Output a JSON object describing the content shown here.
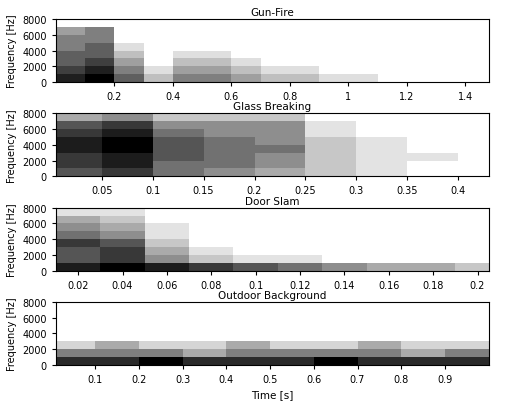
{
  "chart_data": [
    {
      "type": "heatmap",
      "title": "Gun-Fire",
      "ylabel": "Frequency [Hz]",
      "xlim": [
        0.0,
        1.48
      ],
      "xticks": [
        0.2,
        0.4,
        0.6,
        0.8,
        1,
        1.2,
        1.4
      ],
      "ylim": [
        0,
        8000
      ],
      "yticks": [
        0,
        2000,
        4000,
        6000,
        8000
      ],
      "time_bins": [
        0.0,
        0.1,
        0.2,
        0.3,
        0.4,
        0.5,
        0.6,
        0.7,
        0.8,
        0.9,
        1.0,
        1.1,
        1.2,
        1.3,
        1.4,
        1.5
      ],
      "freq_bins": [
        0,
        1000,
        2000,
        3000,
        4000,
        5000,
        6000,
        7000,
        8000
      ],
      "cells": [
        [
          7,
          8,
          5,
          2,
          4,
          4,
          3,
          2,
          2,
          1,
          1,
          0,
          0,
          0,
          0
        ],
        [
          6,
          7,
          4,
          1,
          3,
          3,
          2,
          1,
          1,
          0,
          0,
          0,
          0,
          0,
          0
        ],
        [
          5,
          6,
          3,
          0,
          2,
          2,
          1,
          0,
          0,
          0,
          0,
          0,
          0,
          0,
          0
        ],
        [
          5,
          5,
          2,
          0,
          1,
          1,
          0,
          0,
          0,
          0,
          0,
          0,
          0,
          0,
          0
        ],
        [
          4,
          5,
          1,
          0,
          0,
          0,
          0,
          0,
          0,
          0,
          0,
          0,
          0,
          0,
          0
        ],
        [
          4,
          4,
          0,
          0,
          0,
          0,
          0,
          0,
          0,
          0,
          0,
          0,
          0,
          0,
          0
        ],
        [
          3,
          4,
          0,
          0,
          0,
          0,
          0,
          0,
          0,
          0,
          0,
          0,
          0,
          0,
          0
        ],
        [
          0,
          0,
          0,
          0,
          0,
          0,
          0,
          0,
          0,
          0,
          0,
          0,
          0,
          0,
          0
        ]
      ]
    },
    {
      "type": "heatmap",
      "title": "Glass Breaking",
      "ylabel": "Frequency [Hz]",
      "xlim": [
        0.005,
        0.43
      ],
      "xticks": [
        0.05,
        0.1,
        0.15,
        0.2,
        0.25,
        0.3,
        0.35,
        0.4
      ],
      "ylim": [
        0,
        8000
      ],
      "yticks": [
        0,
        2000,
        4000,
        6000,
        8000
      ],
      "time_bins": [
        0.0,
        0.05,
        0.1,
        0.15,
        0.2,
        0.25,
        0.3,
        0.35,
        0.4,
        0.45
      ],
      "freq_bins": [
        0,
        1000,
        2000,
        3000,
        4000,
        5000,
        6000,
        7000,
        8000
      ],
      "cells": [
        [
          6,
          7,
          5,
          4,
          3,
          2,
          1,
          0,
          0
        ],
        [
          7,
          8,
          5,
          5,
          4,
          2,
          1,
          0,
          0
        ],
        [
          7,
          8,
          6,
          5,
          4,
          2,
          1,
          1,
          0
        ],
        [
          8,
          9,
          6,
          5,
          5,
          2,
          1,
          0,
          0
        ],
        [
          8,
          9,
          6,
          5,
          4,
          2,
          1,
          0,
          0
        ],
        [
          7,
          8,
          5,
          4,
          4,
          1,
          0,
          0,
          0
        ],
        [
          6,
          7,
          4,
          4,
          4,
          1,
          0,
          0,
          0
        ],
        [
          3,
          4,
          2,
          2,
          2,
          0,
          0,
          0,
          0
        ]
      ]
    },
    {
      "type": "heatmap",
      "title": "Door Slam",
      "ylabel": "Frequency [Hz]",
      "xlim": [
        0.01,
        0.205
      ],
      "xticks": [
        0.02,
        0.04,
        0.06,
        0.08,
        0.1,
        0.12,
        0.14,
        0.16,
        0.18,
        0.2
      ],
      "ylim": [
        0,
        8000
      ],
      "yticks": [
        0,
        2000,
        4000,
        6000,
        8000
      ],
      "time_bins": [
        0.01,
        0.03,
        0.05,
        0.07,
        0.09,
        0.11,
        0.13,
        0.15,
        0.17,
        0.19,
        0.21
      ],
      "freq_bins": [
        0,
        1000,
        2000,
        3000,
        4000,
        5000,
        6000,
        7000,
        8000
      ],
      "cells": [
        [
          8,
          9,
          8,
          7,
          6,
          5,
          4,
          3,
          3,
          2
        ],
        [
          6,
          7,
          4,
          2,
          1,
          1,
          0,
          0,
          0,
          0
        ],
        [
          6,
          7,
          3,
          1,
          0,
          0,
          0,
          0,
          0,
          0
        ],
        [
          7,
          6,
          2,
          0,
          0,
          0,
          0,
          0,
          0,
          0
        ],
        [
          5,
          4,
          1,
          0,
          0,
          0,
          0,
          0,
          0,
          0
        ],
        [
          4,
          3,
          1,
          0,
          0,
          0,
          0,
          0,
          0,
          0
        ],
        [
          3,
          2,
          0,
          0,
          0,
          0,
          0,
          0,
          0,
          0
        ],
        [
          1,
          1,
          0,
          0,
          0,
          0,
          0,
          0,
          0,
          0
        ]
      ]
    },
    {
      "type": "heatmap",
      "title": "Outdoor Background",
      "ylabel": "Frequency [Hz]",
      "xlabel": "Time [s]",
      "xlim": [
        0.01,
        1.0
      ],
      "xticks": [
        0.1,
        0.2,
        0.3,
        0.4,
        0.5,
        0.6,
        0.7,
        0.8,
        0.9
      ],
      "ylim": [
        0,
        8000
      ],
      "yticks": [
        0,
        2000,
        4000,
        6000,
        8000
      ],
      "time_bins": [
        0.0,
        0.1,
        0.2,
        0.3,
        0.4,
        0.5,
        0.6,
        0.7,
        0.8,
        0.9,
        1.0
      ],
      "freq_bins": [
        0,
        1000,
        2000,
        3000,
        4000,
        5000,
        6000,
        7000,
        8000
      ],
      "cells": [
        [
          5,
          5,
          6,
          5,
          5,
          5,
          6,
          5,
          5,
          5
        ],
        [
          3,
          3,
          3,
          2,
          3,
          3,
          3,
          3,
          2,
          3
        ],
        [
          1,
          2,
          1,
          1,
          2,
          1,
          1,
          2,
          1,
          1
        ],
        [
          0,
          0,
          0,
          0,
          0,
          0,
          0,
          0,
          0,
          0
        ],
        [
          0,
          0,
          0,
          0,
          0,
          0,
          0,
          0,
          0,
          0
        ],
        [
          0,
          0,
          0,
          0,
          0,
          0,
          0,
          0,
          0,
          0
        ],
        [
          0,
          0,
          0,
          0,
          0,
          0,
          0,
          0,
          0,
          0
        ],
        [
          0,
          0,
          0,
          0,
          0,
          0,
          0,
          0,
          0,
          0
        ]
      ]
    }
  ]
}
